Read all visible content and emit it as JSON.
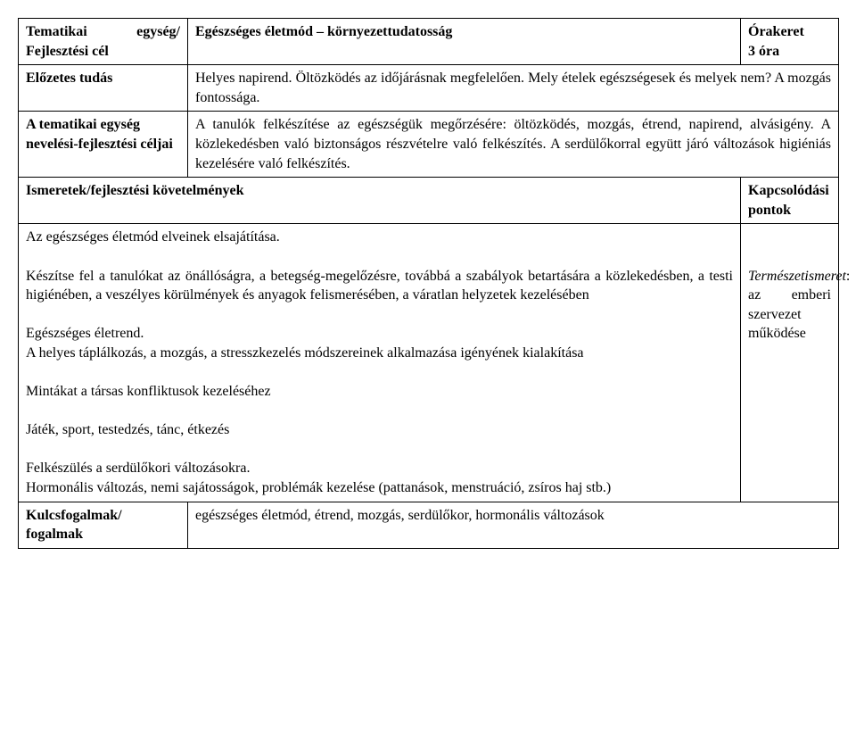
{
  "table": {
    "row1": {
      "c1_html": "<span class=\"bold\">Tematikai egység/ Fejlesztési cél</span>",
      "c2_html": "<span class=\"bold\">Egészséges életmód – környezettudatosság</span>",
      "c3_html": "<span class=\"bold\">Órakeret<br>3 óra</span>"
    },
    "row2": {
      "c1_html": "<span class=\"bold\">Előzetes tudás</span>",
      "c2_html": "Helyes napirend. Öltözködés az időjárásnak megfelelően. Mely ételek egészségesek és melyek nem? A mozgás fontossága."
    },
    "row3": {
      "c1_html": "<span class=\"bold\">A tematikai egység nevelési-fejlesztési céljai</span>",
      "c2_html": "A tanulók felkészítése az egészségük megőrzésére: öltözködés, mozgás, étrend, napirend, alvásigény. A közlekedésben való biztonságos részvételre való felkészítés. A serdülőkorral együtt járó változások higiéniás kezelésére való felkészítés."
    },
    "row4": {
      "c1_html": "<span class=\"bold\">Ismeretek/fejlesztési követelmények</span>",
      "c2_html": "<span class=\"bold\">Kapcsolódási pontok</span>"
    },
    "row5": {
      "c1_html": "Az egészséges életmód elveinek elsajátítása.<br><br>Készítse fel a tanulókat az önállóságra, a betegség-megelőzésre, továbbá a szabályok betartására a közlekedésben, a testi higiénében, a veszélyes körülmények és anyagok felismerésében, a váratlan helyzetek kezelésében<br><br>Egészséges életrend.<br>A helyes táplálkozás, a mozgás, a stresszkezelés módszereinek alkalmazása igényének kialakítása<br><br>Mintákat a társas konfliktusok kezeléséhez<br><br>Játék, sport, testedzés, tánc, étkezés<br><br>Felkészülés a serdülőkori változásokra.<br>Hormonális változás, nemi sajátosságok, problémák kezelése (pattanások, menstruáció, zsíros haj stb.)",
      "c2_html": "<br><br><span class=\"italic\">Természetismeret</span>:<br>az emberi szervezet működése"
    },
    "row6": {
      "c1_html": "<span class=\"bold\">Kulcsfogalmak/ fogalmak</span>",
      "c2_html": "egészséges életmód, étrend, mozgás, serdülőkor, hormonális változások"
    }
  }
}
